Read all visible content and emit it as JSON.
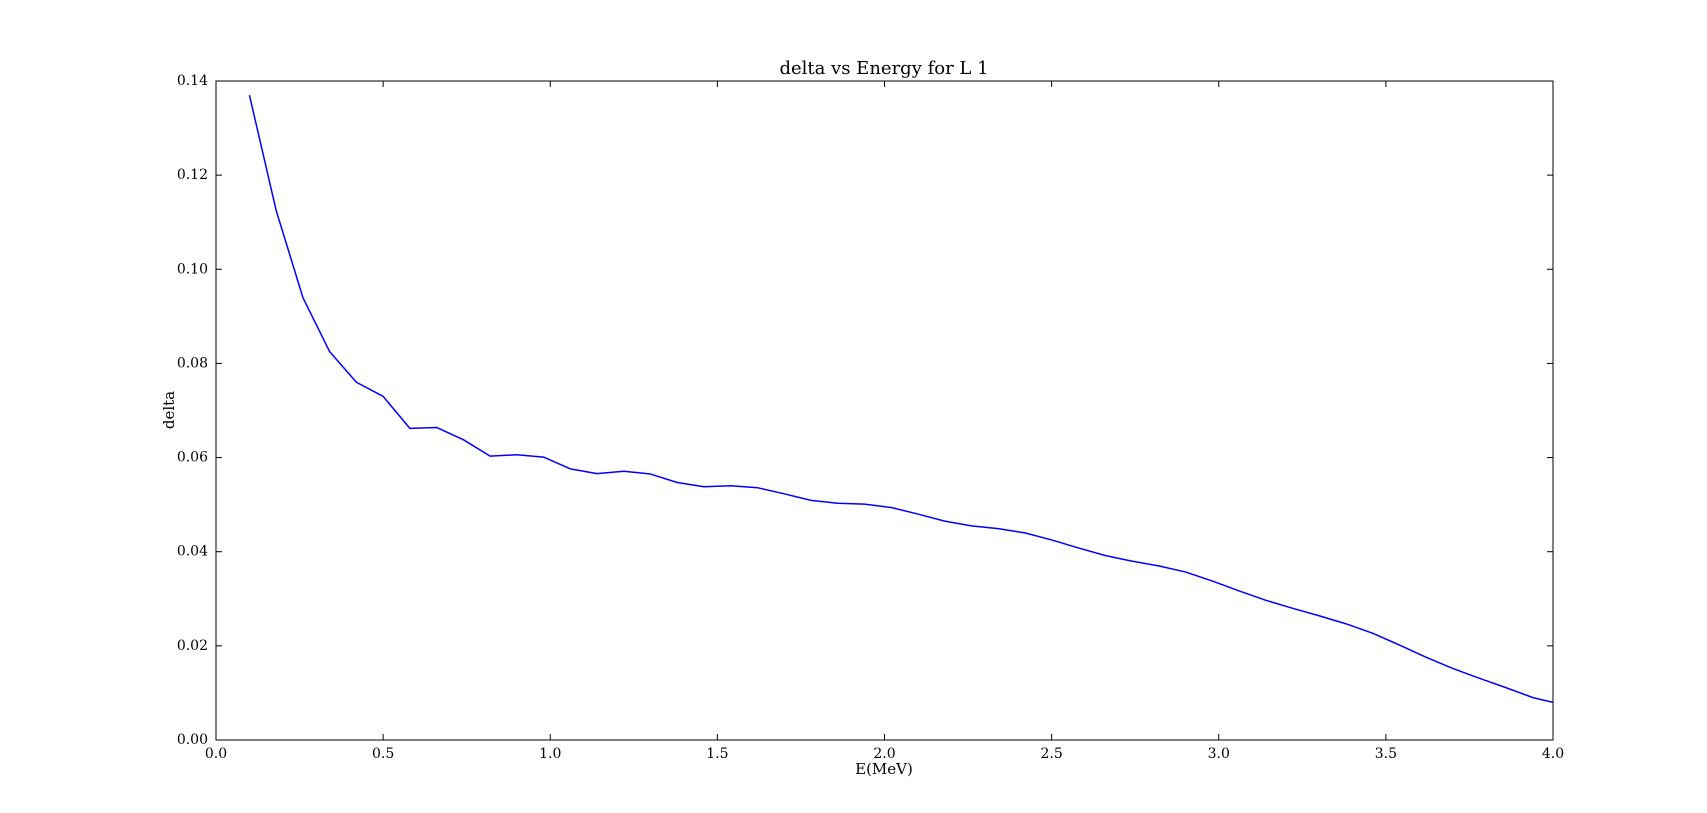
{
  "chart_data": {
    "type": "line",
    "title": "delta vs Energy for L 1",
    "xlabel": "E(MeV)",
    "ylabel": "delta",
    "xlim": [
      0.0,
      4.0
    ],
    "ylim": [
      0.0,
      0.14
    ],
    "xticks": [
      "0.0",
      "0.5",
      "1.0",
      "1.5",
      "2.0",
      "2.5",
      "3.0",
      "3.5",
      "4.0"
    ],
    "yticks": [
      "0.00",
      "0.02",
      "0.04",
      "0.06",
      "0.08",
      "0.10",
      "0.12",
      "0.14"
    ],
    "grid": false,
    "legend": "none",
    "series": [
      {
        "color": "#0000ff",
        "x": [
          0.1,
          0.18,
          0.26,
          0.34,
          0.42,
          0.5,
          0.58,
          0.66,
          0.74,
          0.82,
          0.9,
          0.98,
          1.06,
          1.14,
          1.22,
          1.3,
          1.38,
          1.46,
          1.54,
          1.62,
          1.7,
          1.78,
          1.86,
          1.94,
          2.02,
          2.1,
          2.18,
          2.26,
          2.34,
          2.42,
          2.5,
          2.58,
          2.66,
          2.74,
          2.82,
          2.9,
          2.98,
          3.06,
          3.14,
          3.22,
          3.3,
          3.38,
          3.46,
          3.54,
          3.62,
          3.7,
          3.78,
          3.86,
          3.94,
          4.0
        ],
        "y": [
          0.137,
          0.1125,
          0.094,
          0.0825,
          0.076,
          0.073,
          0.0662,
          0.0664,
          0.0638,
          0.0603,
          0.0606,
          0.0601,
          0.0576,
          0.0566,
          0.0571,
          0.0565,
          0.0547,
          0.0538,
          0.054,
          0.0536,
          0.0523,
          0.0509,
          0.0503,
          0.0501,
          0.0494,
          0.048,
          0.0465,
          0.0455,
          0.0449,
          0.044,
          0.0425,
          0.0408,
          0.0392,
          0.038,
          0.037,
          0.0357,
          0.0338,
          0.0317,
          0.0297,
          0.028,
          0.0264,
          0.0247,
          0.0227,
          0.0202,
          0.0176,
          0.0152,
          0.0131,
          0.0111,
          0.009,
          0.008
        ]
      }
    ]
  }
}
